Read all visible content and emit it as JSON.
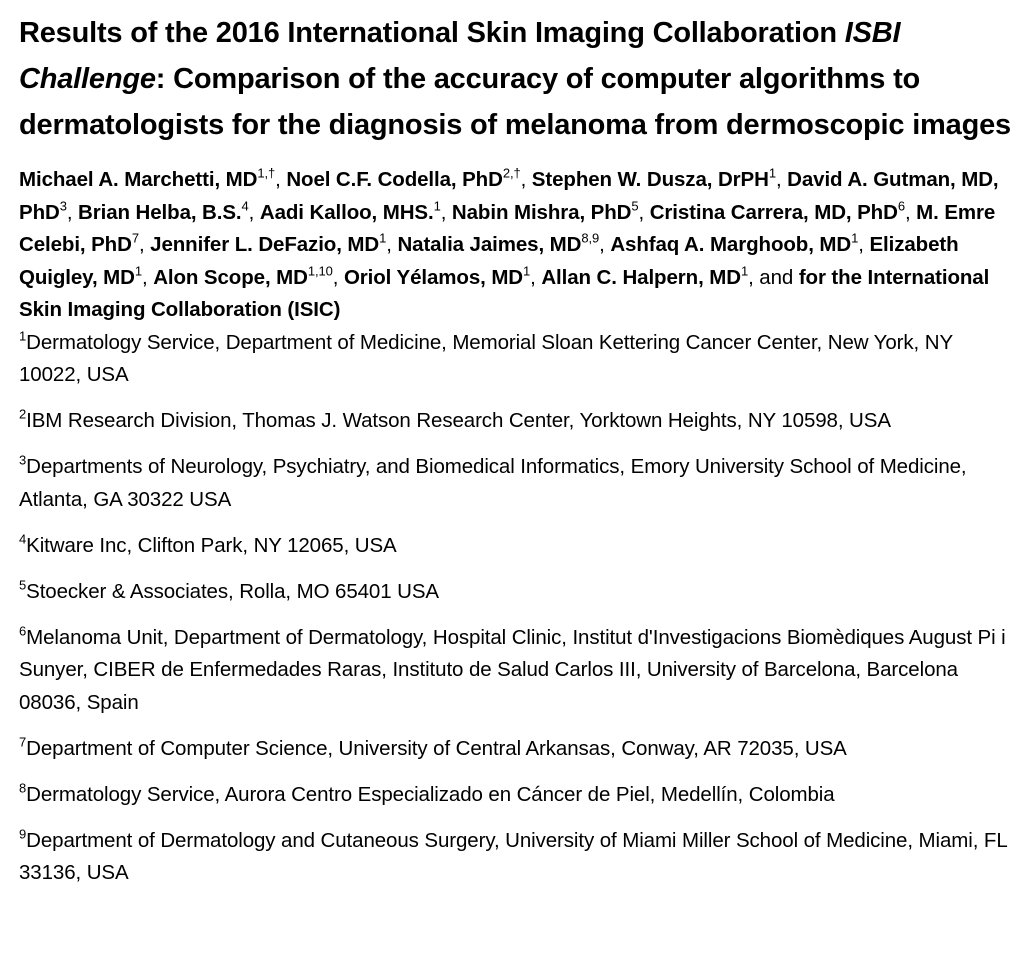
{
  "title": {
    "part1": "Results of the 2016 International Skin Imaging Collaboration ",
    "italic1": "ISBI Challenge",
    "part2": ": Comparison of the accuracy of computer algorithms to dermatologists for the diagnosis of melanoma from dermoscopic images"
  },
  "authors": [
    {
      "name": "Michael A. Marchetti, MD",
      "sup": "1,†"
    },
    {
      "name": "Noel C.F. Codella, PhD",
      "sup": "2,†"
    },
    {
      "name": "Stephen W. Dusza, DrPH",
      "sup": "1"
    },
    {
      "name": "David A. Gutman, MD, PhD",
      "sup": "3"
    },
    {
      "name": "Brian Helba, B.S.",
      "sup": "4"
    },
    {
      "name": "Aadi Kalloo, MHS.",
      "sup": "1"
    },
    {
      "name": "Nabin Mishra, PhD",
      "sup": "5"
    },
    {
      "name": "Cristina Carrera, MD, PhD",
      "sup": "6"
    },
    {
      "name": "M. Emre Celebi, PhD",
      "sup": "7"
    },
    {
      "name": "Jennifer L. DeFazio, MD",
      "sup": "1"
    },
    {
      "name": "Natalia Jaimes, MD",
      "sup": "8,9"
    },
    {
      "name": "Ashfaq A. Marghoob, MD",
      "sup": "1"
    },
    {
      "name": "Elizabeth Quigley, MD",
      "sup": "1"
    },
    {
      "name": "Alon Scope, MD",
      "sup": "1,10"
    },
    {
      "name": "Oriol Yélamos, MD",
      "sup": "1"
    },
    {
      "name": "Allan C. Halpern, MD",
      "sup": "1"
    }
  ],
  "authors_and": "and",
  "group_author": "for the International Skin Imaging Collaboration (ISIC)",
  "affiliations": [
    {
      "num": "1",
      "text": "Dermatology Service, Department of Medicine, Memorial Sloan Kettering Cancer Center, New York, NY 10022, USA"
    },
    {
      "num": "2",
      "text": "IBM Research Division, Thomas J. Watson Research Center, Yorktown Heights, NY 10598, USA"
    },
    {
      "num": "3",
      "text": "Departments of Neurology, Psychiatry, and Biomedical Informatics, Emory University School of Medicine, Atlanta, GA 30322 USA"
    },
    {
      "num": "4",
      "text": "Kitware Inc, Clifton Park, NY 12065, USA"
    },
    {
      "num": "5",
      "text": "Stoecker & Associates, Rolla, MO 65401 USA"
    },
    {
      "num": "6",
      "text": "Melanoma Unit, Department of Dermatology, Hospital Clinic, Institut d'Investigacions Biomèdiques August Pi i Sunyer, CIBER de Enfermedades Raras, Instituto de Salud Carlos III, University of Barcelona, Barcelona 08036, Spain"
    },
    {
      "num": "7",
      "text": "Department of Computer Science, University of Central Arkansas, Conway, AR 72035, USA"
    },
    {
      "num": "8",
      "text": "Dermatology Service, Aurora Centro Especializado en Cáncer de Piel, Medellín, Colombia"
    },
    {
      "num": "9",
      "text": "Department of Dermatology and Cutaneous Surgery, University of Miami Miller School of Medicine, Miami, FL 33136, USA"
    }
  ]
}
